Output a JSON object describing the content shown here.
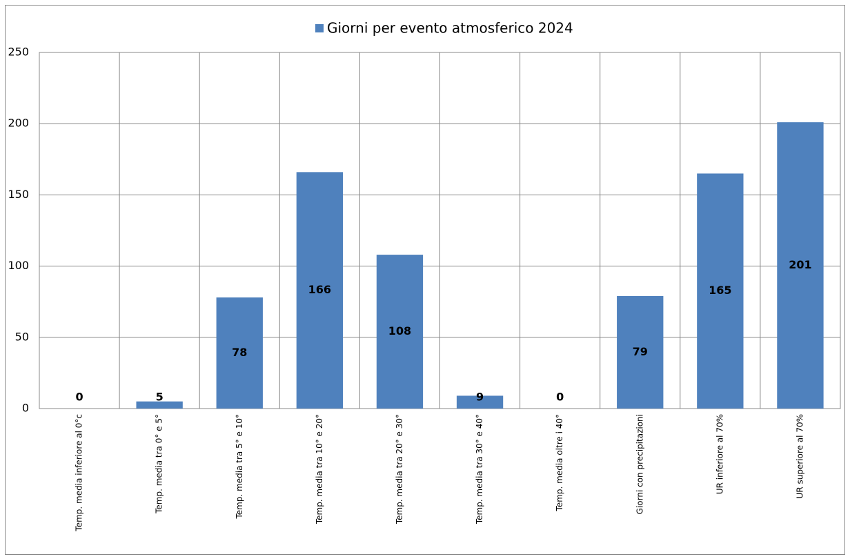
{
  "chart_data": {
    "type": "bar",
    "categories": [
      "Temp. media inferiore al 0°c",
      "Temp. media tra 0° e 5°",
      "Temp. media tra 5° e 10°",
      "Temp. media tra 10° e 20°",
      "Temp. media tra 20° e 30°",
      "Temp. media tra 30° e 40°",
      "Temp. media oltre i 40°",
      "Giorni  con precipitazioni",
      "UR inferiore al 70%",
      "UR superiore al 70%"
    ],
    "series": [
      {
        "name": "Giorni per evento atmosferico 2024",
        "color": "#4f81bd",
        "values": [
          0,
          5,
          78,
          166,
          108,
          9,
          0,
          79,
          165,
          201
        ]
      }
    ],
    "ylim": [
      0,
      250
    ],
    "yticks": [
      0,
      50,
      100,
      150,
      200,
      250
    ],
    "grid": true,
    "legend": "top"
  }
}
